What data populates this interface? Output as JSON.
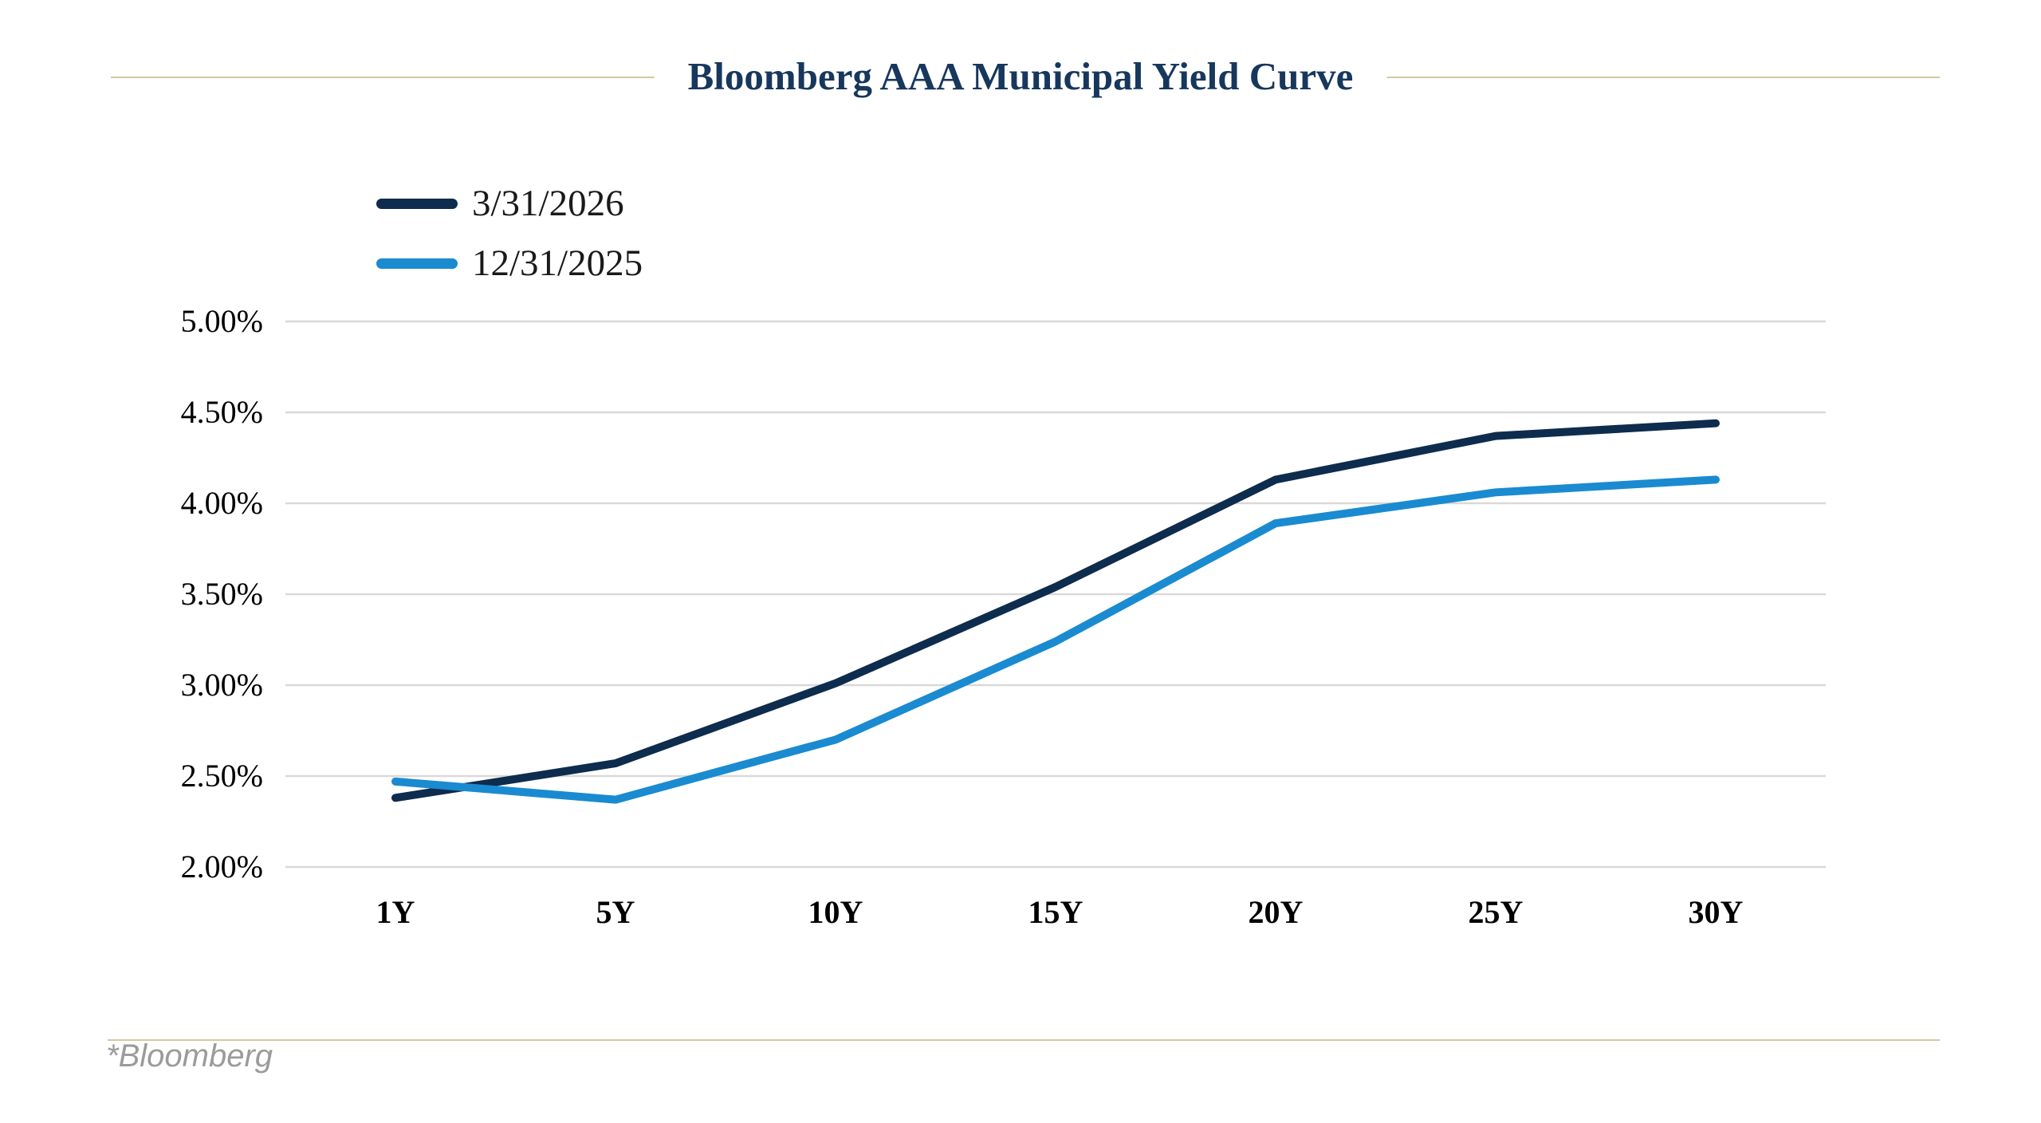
{
  "title": "Bloomberg AAA Municipal Yield Curve",
  "footnote": "*Bloomberg",
  "colors": {
    "title_text": "#17375d",
    "rule": "#d5c7a0",
    "grid": "#d9d9d9",
    "axis_text": "#000000",
    "footnote_text": "#9b9b9b",
    "background": "#ffffff"
  },
  "legend": {
    "items": [
      {
        "label": "3/31/2026",
        "color": "#0e2c4d"
      },
      {
        "label": "12/31/2025",
        "color": "#1a8bd0"
      }
    ]
  },
  "chart_data": {
    "type": "line",
    "title": "Bloomberg AAA Municipal Yield Curve",
    "categories": [
      "1Y",
      "5Y",
      "10Y",
      "15Y",
      "20Y",
      "25Y",
      "30Y"
    ],
    "series": [
      {
        "name": "3/31/2026",
        "color": "#0e2c4d",
        "values": [
          2.38,
          2.57,
          3.01,
          3.54,
          4.13,
          4.37,
          4.44
        ]
      },
      {
        "name": "12/31/2025",
        "color": "#1a8bd0",
        "values": [
          2.47,
          2.37,
          2.7,
          3.24,
          3.89,
          4.06,
          4.13
        ]
      }
    ],
    "xlabel": "",
    "ylabel": "",
    "y_ticks": [
      "5.00%",
      "4.50%",
      "4.00%",
      "3.50%",
      "3.00%",
      "2.50%",
      "2.00%"
    ],
    "ylim": [
      2.0,
      5.0
    ],
    "y_step": 0.5,
    "grid": true,
    "legend_position": "top-left",
    "line_width": 10
  }
}
